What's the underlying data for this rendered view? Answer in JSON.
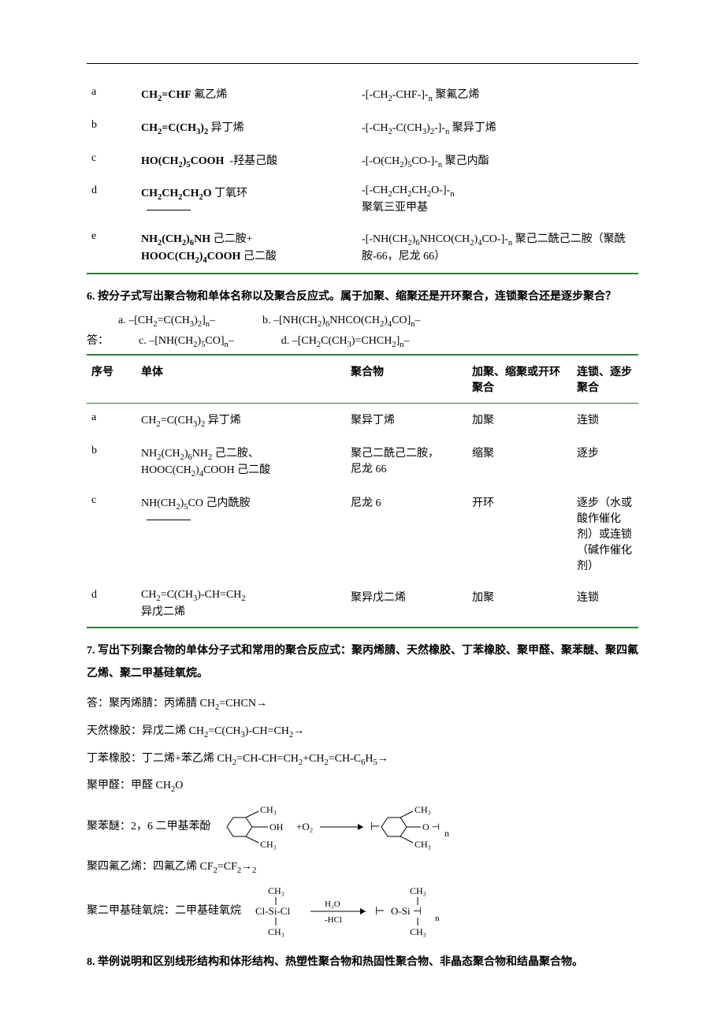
{
  "table1": {
    "rows": [
      {
        "id": "a",
        "monomer_html": "<span class='bold'>CH<span class='sub'>2</span>=CHF</span> 氟乙烯",
        "polymer_html": "-[-CH<span class='sub'>2</span>-CHF-]-<span class='sub'>n</span> 聚氟乙烯"
      },
      {
        "id": "b",
        "monomer_html": "<span class='bold'>CH<span class='sub'>2</span>=C(CH<span class='sub'>3</span>)<span class='sub'>2</span></span> 异丁烯",
        "polymer_html": "-[-CH<span class='sub'>2</span>-C(CH<span class='sub'>3</span>)<span class='sub'>2</span>-]-<span class='sub'>n</span> 聚异丁烯"
      },
      {
        "id": "c",
        "monomer_html": "<span class='bold'>HO(CH<span class='sub'>2</span>)<span class='sub'>5</span>COOH</span>&nbsp;&nbsp;-羟基己酸",
        "polymer_html": "-[-O(CH<span class='sub'>2</span>)<span class='sub'>5</span>CO-]-<span class='sub'>n</span> 聚己内酯"
      },
      {
        "id": "d",
        "monomer_html": "<span class='bold'>CH<span class='sub'>2</span>CH<span class='sub'>2</span>CH<span class='sub'>2</span>O</span> 丁氧环<br>&nbsp;&nbsp;<span style='border-bottom:1px solid #000;display:inline-block;width:56px;'></span>",
        "polymer_html": "-[-CH<span class='sub'>2</span>CH<span class='sub'>2</span>CH<span class='sub'>2</span>O-]-<span class='sub'>n</span><br>聚氧三亚甲基"
      },
      {
        "id": "e",
        "monomer_html": "<span class='bold'>NH<span class='sub'>2</span>(CH<span class='sub'>2</span>)<span class='sub'>6</span>NH</span> 己二胺+<br><span class='bold'>HOOC(CH<span class='sub'>2</span>)<span class='sub'>4</span>COOH</span> 己二酸",
        "polymer_html": "-[-NH(CH<span class='sub'>2</span>)<span class='sub'>6</span>NHCO(CH<span class='sub'>2</span>)<span class='sub'>4</span>CO-]-<span class='sub'>n</span> 聚己二酰己二胺（聚酰胺-66，尼龙 66）"
      }
    ]
  },
  "q6": {
    "title": "6. 按分子式写出聚合物和单体名称以及聚合反应式。属于加聚、缩聚还是开环聚合，连锁聚合还是逐步聚合？",
    "opts": {
      "a": "a. –[CH<span class='sub'>2</span>=C(CH<span class='sub'>3</span>)<span class='sub'>2</span>]<span class='sub'>n</span>–",
      "b": "b. –[NH(CH<span class='sub'>2</span>)<span class='sub'>6</span>NHCO(CH<span class='sub'>2</span>)<span class='sub'>4</span>CO]<span class='sub'>n</span>–",
      "c": "c. –[NH(CH<span class='sub'>2</span>)<span class='sub'>5</span>CO]<span class='sub'>n</span>–",
      "d": "d. –[CH<span class='sub'>2</span>C(CH<span class='sub'>3</span>)=CHCH<span class='sub'>2</span>]<span class='sub'>n</span>–"
    },
    "ans_label": "答：",
    "headers": [
      "序号",
      "单体",
      "聚合物",
      "加聚、缩聚或开环聚合",
      "连锁、逐步聚合"
    ],
    "rows": [
      {
        "id": "a",
        "monomer": "CH<span class='sub'>2</span>=C(CH<span class='sub'>3</span>)<span class='sub'>2</span> 异丁烯",
        "polymer": "聚异丁烯",
        "type1": "加聚",
        "type2": "连锁"
      },
      {
        "id": "b",
        "monomer": "NH<span class='sub'>2</span>(CH<span class='sub'>2</span>)<span class='sub'>6</span>NH<span class='sub'>2</span> 己二胺、<br>HOOC(CH<span class='sub'>2</span>)<span class='sub'>4</span>COOH 己二酸",
        "polymer": "聚己二酰己二胺，<br>尼龙 66",
        "type1": "缩聚",
        "type2": "逐步"
      },
      {
        "id": "c",
        "monomer": "NH(CH<span class='sub'>2</span>)<span class='sub'>5</span>CO 己内酰胺<br>&nbsp;&nbsp;<span style='border-bottom:1px solid #000;display:inline-block;width:56px;'></span>",
        "polymer": "尼龙 6",
        "type1": "开环",
        "type2": "逐步（水或酸作催化剂）或连锁（碱作催化剂）"
      },
      {
        "id": "d",
        "monomer": "CH<span class='sub'>2</span>=C(CH<span class='sub'>3</span>)-CH=CH<span class='sub'>2</span><br>异戊二烯",
        "polymer": "聚异戊二烯",
        "type1": "加聚",
        "type2": "连锁"
      }
    ]
  },
  "q7": {
    "title": "7. 写出下列聚合物的单体分子式和常用的聚合反应式：聚丙烯腈、天然橡胶、丁苯橡胶、聚甲醛、聚苯醚、聚四氟乙烯、聚二甲基硅氧烷。",
    "lines": {
      "ans": "答：聚丙烯腈：丙烯腈 CH<span class='sub'>2</span>=CHCN→",
      "l2": "天然橡胶：异戊二烯 CH<span class='sub'>2</span>=C(CH<span class='sub'>3</span>)-CH=CH<span class='sub'>2</span>→",
      "l3": "丁苯橡胶：丁二烯+苯乙烯 CH<span class='sub'>2</span>=CH-CH=CH<span class='sub'>2</span>+CH<span class='sub'>2</span>=CH-C<span class='sub'>6</span>H<span class='sub'>5</span>→",
      "l4": "聚甲醛：甲醛 CH<span class='sub'>2</span>O",
      "l5": "聚苯醚：2，6 二甲基苯酚",
      "l6": "聚四氟乙烯：四氟乙烯 CF<span class='sub'>2</span>=CF<span class='sub'>2</span>→<span class='sub'>2</span>",
      "l7": "聚二甲基硅氧烷：二甲基硅氧烷"
    }
  },
  "q8": {
    "title": "8. 举例说明和区别线形结构和体形结构、热塑性聚合物和热固性聚合物、非晶态聚合物和结晶聚合物。"
  },
  "colors": {
    "green": "#2e7d32",
    "text": "#000000",
    "bg": "#ffffff"
  }
}
